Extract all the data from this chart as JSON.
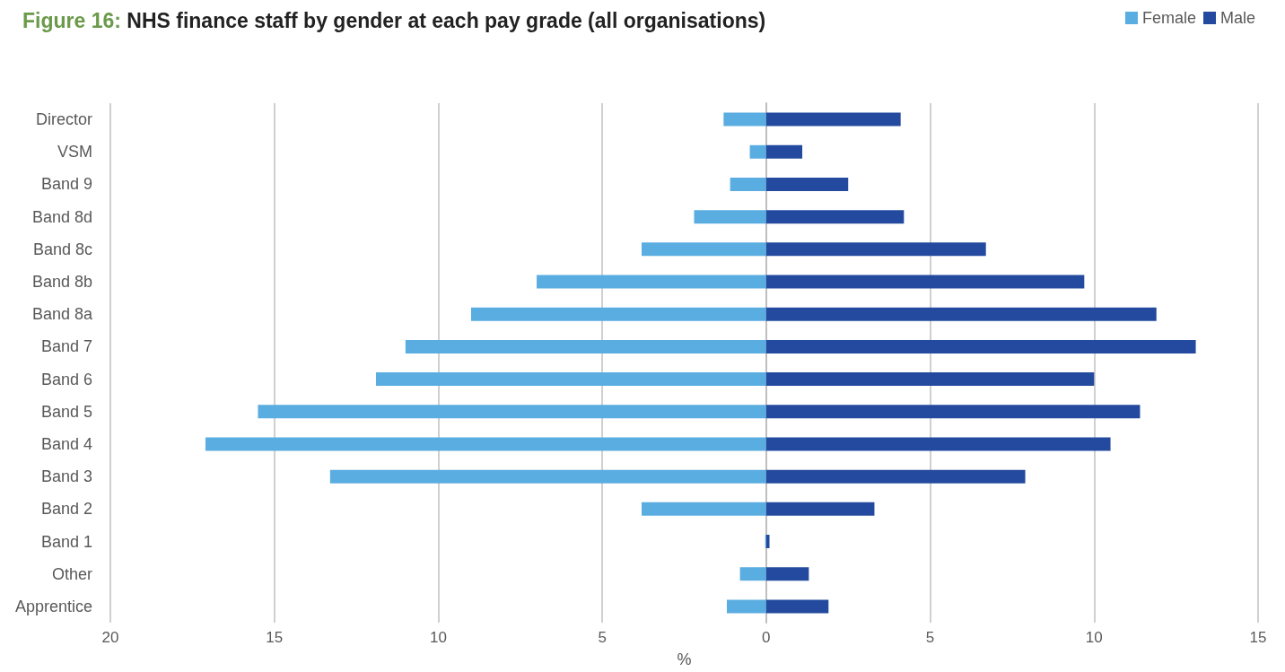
{
  "chart_data": {
    "type": "bar",
    "orientation": "horizontal",
    "stacked": true,
    "title": "Figure 16: NHS finance staff by gender at each pay grade (all organisations)",
    "xlabel": "%",
    "categories": [
      "Director",
      "VSM",
      "Band 9",
      "Band 8d",
      "Band 8c",
      "Band 8b",
      "Band 8a",
      "Band 7",
      "Band 6",
      "Band 5",
      "Band 4",
      "Band 3",
      "Band 2",
      "Band 1",
      "Other",
      "Apprentice"
    ],
    "series": [
      {
        "name": "Female",
        "color": "#5aade0",
        "values": [
          -1.3,
          -0.5,
          -1.1,
          -2.2,
          -3.8,
          -7.0,
          -9.0,
          -11.0,
          -11.9,
          -15.5,
          -17.1,
          -13.3,
          -3.8,
          -0.03,
          -0.8,
          -1.2
        ]
      },
      {
        "name": "Male",
        "color": "#234a9e",
        "values": [
          4.1,
          1.1,
          2.5,
          4.2,
          6.7,
          9.7,
          11.9,
          13.1,
          10.0,
          11.4,
          10.5,
          7.9,
          3.3,
          0.1,
          1.3,
          1.9
        ]
      }
    ],
    "xlim": [
      -20,
      15
    ],
    "xticks": [
      {
        "value": -20,
        "label": "20"
      },
      {
        "value": -15,
        "label": "15"
      },
      {
        "value": -10,
        "label": "10"
      },
      {
        "value": -5,
        "label": "5"
      },
      0,
      5,
      10,
      15
    ],
    "grid": "x",
    "legend": "top right"
  }
}
